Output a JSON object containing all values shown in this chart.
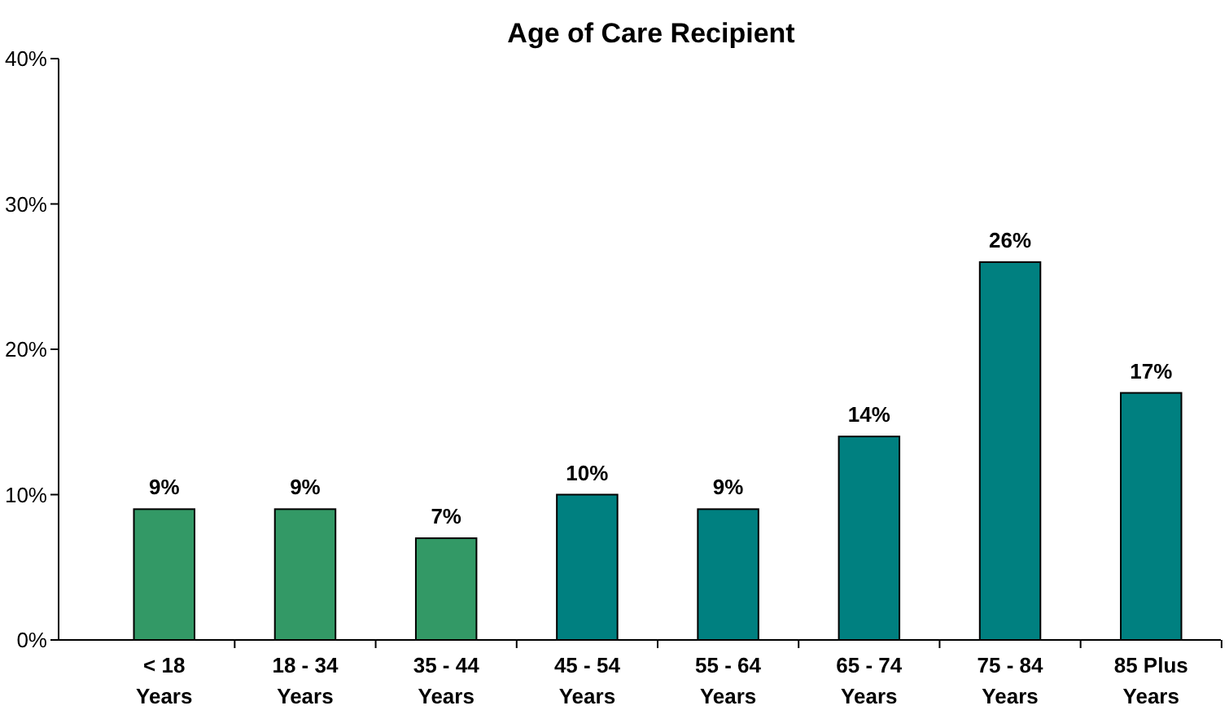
{
  "chart_data": {
    "type": "bar",
    "title": "Age of Care Recipient",
    "categories": [
      "< 18 Years",
      "18 - 34 Years",
      "35 - 44 Years",
      "45 - 54 Years",
      "55 - 64 Years",
      "65 - 74 Years",
      "75 - 84 Years",
      "85 Plus Years"
    ],
    "values": [
      9,
      9,
      7,
      10,
      9,
      14,
      26,
      17
    ],
    "colors": [
      "#339966",
      "#339966",
      "#339966",
      "#008080",
      "#008080",
      "#008080",
      "#008080",
      "#008080"
    ],
    "value_labels": [
      "9%",
      "9%",
      "7%",
      "10%",
      "9%",
      "14%",
      "26%",
      "17%"
    ],
    "ylim": [
      0,
      40
    ],
    "yticks": [
      {
        "value": 0,
        "label": "0%"
      },
      {
        "value": 10,
        "label": "10%"
      },
      {
        "value": 20,
        "label": "20%"
      },
      {
        "value": 30,
        "label": "30%"
      },
      {
        "value": 40,
        "label": "40%"
      }
    ],
    "grid": false
  }
}
